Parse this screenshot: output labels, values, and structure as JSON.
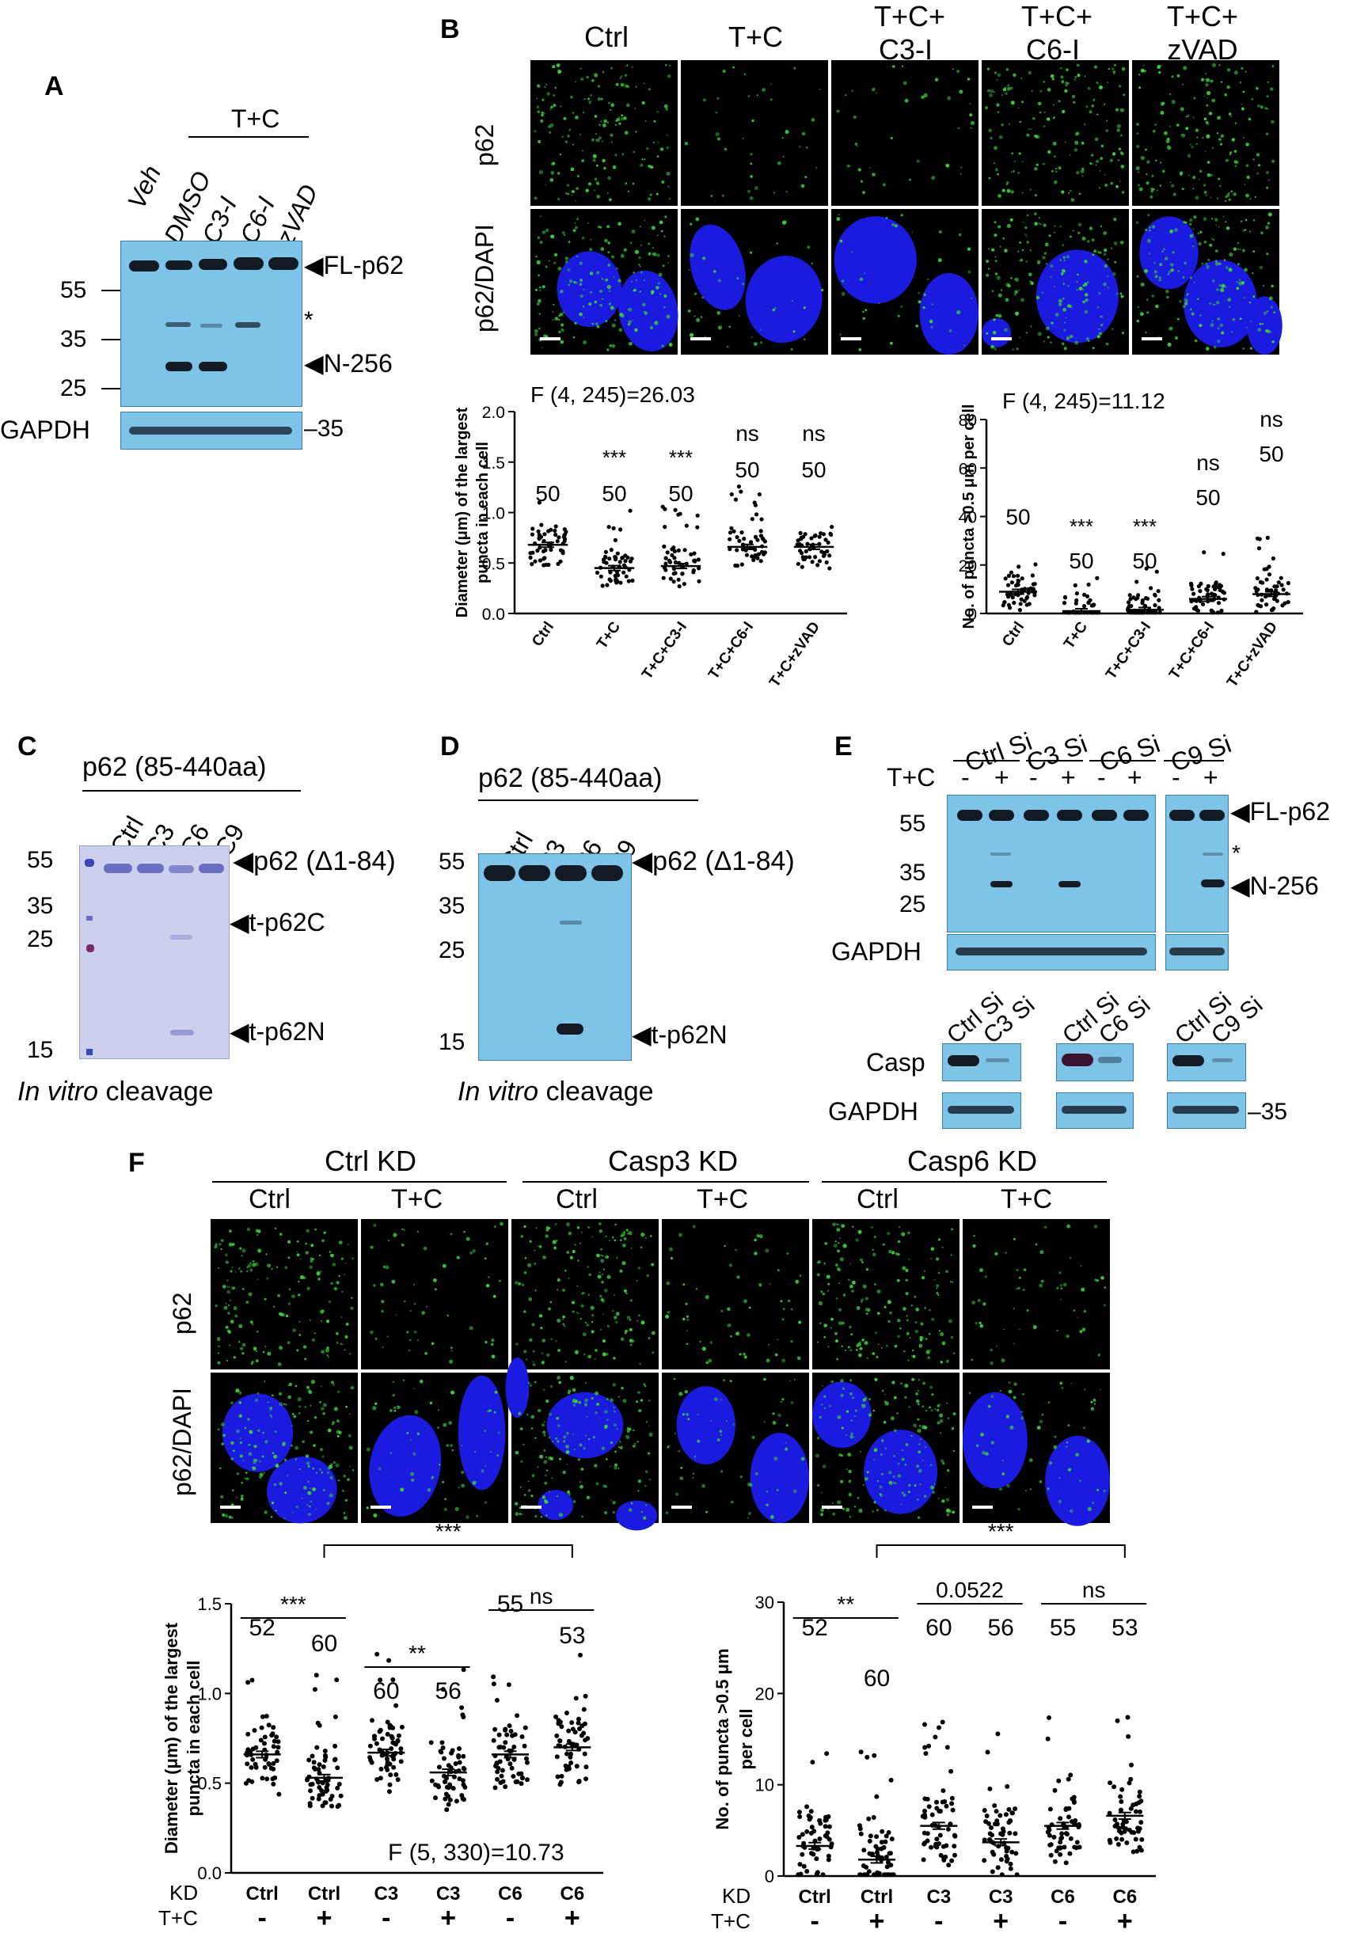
{
  "panelA": {
    "letter": "A",
    "group_label": "T+C",
    "lanes": [
      "Veh",
      "DMSO",
      "C3-I",
      "C6-I",
      "zVAD"
    ],
    "mw_left": [
      "55",
      "35",
      "25"
    ],
    "band_labels": [
      "FL-p62",
      "*",
      "N-256"
    ],
    "loading": "GAPDH",
    "loading_mw": "35"
  },
  "panelB": {
    "letter": "B",
    "columns": [
      "Ctrl",
      "T+C",
      "T+C+\nC3-I",
      "T+C+\nC6-I",
      "T+C+\nzVAD"
    ],
    "col1": [
      "Ctrl"
    ],
    "col2": [
      "T+C"
    ],
    "col3": [
      "T+C+",
      "C3-I"
    ],
    "col4": [
      "T+C+",
      "C6-I"
    ],
    "col5": [
      "T+C+",
      "zVAD"
    ],
    "rows": [
      "p62",
      "p62/DAPI"
    ]
  },
  "panelC": {
    "letter": "C",
    "title": "p62 (85-440aa)",
    "lanes": [
      "Ctrl",
      "C3",
      "C6",
      "C9"
    ],
    "mw": [
      "55",
      "35",
      "25",
      "15"
    ],
    "band_labels": [
      "p62 (Δ1-84)",
      "t-p62C",
      "t-p62N"
    ],
    "caption_it": "In vitro",
    "caption_rest": " cleavage"
  },
  "panelD": {
    "letter": "D",
    "title": "p62 (85-440aa)",
    "lanes": [
      "Ctrl",
      "C3",
      "C6",
      "C9"
    ],
    "mw": [
      "55",
      "35",
      "25",
      "15"
    ],
    "band_labels": [
      "p62 (Δ1-84)",
      "t-p62N"
    ],
    "caption_it": "In vitro",
    "caption_rest": " cleavage"
  },
  "panelE": {
    "letter": "E",
    "groups": [
      "Ctrl Si",
      "C3 Si",
      "C6 Si",
      "C9 Si"
    ],
    "treat_label": "T+C",
    "signs": [
      "-",
      "+"
    ],
    "mw": [
      "55",
      "35",
      "25"
    ],
    "band_labels": [
      "FL-p62",
      "*",
      "N-256"
    ],
    "loading": "GAPDH",
    "kd_lanes": [
      [
        "Ctrl Si",
        "C3 Si"
      ],
      [
        "Ctrl Si",
        "C6 Si"
      ],
      [
        "Ctrl Si",
        "C9 Si"
      ]
    ],
    "casp_label": "Casp",
    "gapdh_label": "GAPDH",
    "gapdh_mw": "35"
  },
  "panelF": {
    "letter": "F",
    "groups": [
      "Ctrl KD",
      "Casp3 KD",
      "Casp6 KD"
    ],
    "cols": [
      "Ctrl",
      "T+C",
      "Ctrl",
      "T+C",
      "Ctrl",
      "T+C"
    ],
    "rows": [
      "p62",
      "p62/DAPI"
    ]
  },
  "colors": {
    "blot_bg": "#7ec4e8",
    "fluor_green": "#3bd13b",
    "dapi_blue": "#1b1be0",
    "gel_bg": "#cdd0ec"
  },
  "chart_data": [
    {
      "id": "B-left",
      "type": "scatter",
      "ylabel": "Diameter (μm) of the largest puncta in each cell",
      "ylabel_lines": [
        "Diameter (μm) of the largest",
        "puncta in each cell"
      ],
      "categories": [
        "Ctrl",
        "T+C",
        "T+C+C3-I",
        "T+C+C6-I",
        "T+C+zVAD"
      ],
      "means": [
        0.68,
        0.45,
        0.47,
        0.66,
        0.66
      ],
      "n": [
        "50",
        "50",
        "50",
        "50",
        "50"
      ],
      "sig": [
        "",
        "***",
        "***",
        "ns",
        "ns"
      ],
      "stat": "F (4, 245)=26.03",
      "ylim": [
        0,
        2.0
      ],
      "yticks": [
        "0.0",
        "0.5",
        "1.0",
        "1.5",
        "2.0"
      ]
    },
    {
      "id": "B-right",
      "type": "scatter",
      "ylabel": "No. of puncta >0.5 μm per cell",
      "categories": [
        "Ctrl",
        "T+C",
        "T+C+C3-I",
        "T+C+C6-I",
        "T+C+zVAD"
      ],
      "means": [
        9,
        1,
        1.5,
        6,
        8
      ],
      "n": [
        "50",
        "50",
        "50",
        "50",
        "50"
      ],
      "sig": [
        "",
        "***",
        "***",
        "ns",
        "ns"
      ],
      "stat": "F (4, 245)=11.12",
      "ylim": [
        0,
        80
      ],
      "yticks": [
        "0",
        "20",
        "40",
        "60",
        "80"
      ]
    },
    {
      "id": "F-left",
      "type": "scatter",
      "ylabel": "Diameter (μm) of the largest puncta in each cell",
      "ylabel_lines": [
        "Diameter (μm) of the largest",
        "puncta in each cell"
      ],
      "kd_label": "KD",
      "treat_label": "T+C",
      "categories": [
        "Ctrl",
        "Ctrl",
        "C3",
        "C3",
        "C6",
        "C6"
      ],
      "treat": [
        "-",
        "+",
        "-",
        "+",
        "-",
        "+"
      ],
      "means": [
        0.66,
        0.53,
        0.67,
        0.56,
        0.66,
        0.7
      ],
      "n": [
        "52",
        "60",
        "60",
        "56",
        "55",
        "53"
      ],
      "brackets": [
        {
          "from": 0,
          "to": 1,
          "label": "***"
        },
        {
          "from": 2,
          "to": 3,
          "label": "**"
        },
        {
          "from": 4,
          "to": 5,
          "label": "ns"
        },
        {
          "from": 1,
          "to": 5,
          "label": "***"
        }
      ],
      "stat": "F (5, 330)=10.73",
      "ylim": [
        0,
        1.5
      ],
      "yticks": [
        "0.0",
        "0.5",
        "1.0",
        "1.5"
      ]
    },
    {
      "id": "F-right",
      "type": "scatter",
      "ylabel": "No. of puncta >0.5 μm per cell",
      "ylabel_lines": [
        "No. of puncta >0.5 μm",
        "per cell"
      ],
      "kd_label": "KD",
      "treat_label": "T+C",
      "categories": [
        "Ctrl",
        "Ctrl",
        "C3",
        "C3",
        "C6",
        "C6"
      ],
      "treat": [
        "-",
        "+",
        "-",
        "+",
        "-",
        "+"
      ],
      "means": [
        3.3,
        1.8,
        5.5,
        3.7,
        5.5,
        6.6
      ],
      "n": [
        "52",
        "60",
        "60",
        "56",
        "55",
        "53"
      ],
      "brackets": [
        {
          "from": 0,
          "to": 1,
          "label": "**"
        },
        {
          "from": 2,
          "to": 3,
          "label": "0.0522"
        },
        {
          "from": 4,
          "to": 5,
          "label": "ns"
        },
        {
          "from": 1,
          "to": 5,
          "label": "***"
        }
      ],
      "ylim": [
        0,
        30
      ],
      "yticks": [
        "0",
        "10",
        "20",
        "30"
      ]
    }
  ]
}
